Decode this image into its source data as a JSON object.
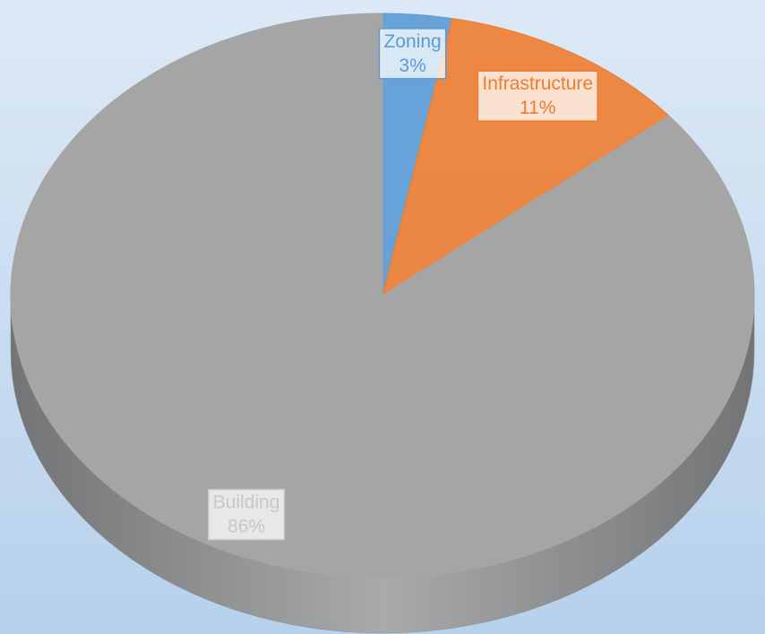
{
  "chart_data": {
    "type": "pie",
    "three_d": true,
    "categories": [
      "Zoning",
      "Infrastructure",
      "Building"
    ],
    "values": [
      3,
      11,
      86
    ],
    "value_labels": [
      "3%",
      "11%",
      "86%"
    ],
    "colors": [
      "#5b9bd5",
      "#ed7d31",
      "#a5a5a5"
    ],
    "label_colors": [
      "#5b9bd5",
      "#ed7d31",
      "#c8c8c8"
    ]
  }
}
